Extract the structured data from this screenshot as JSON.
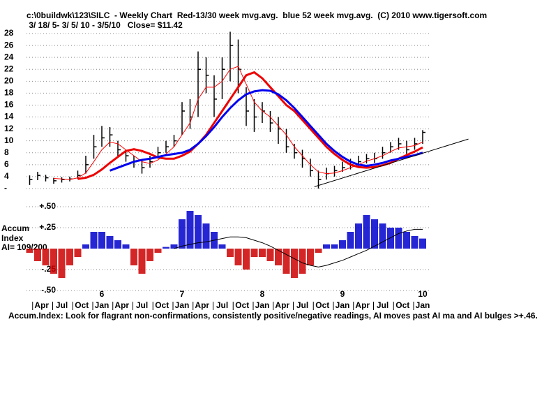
{
  "chart_data": [
    {
      "type": "ohlc",
      "title": "c:\\0buildwk\\123\\SILC  - Weekly Chart  Red-13/30 week mvg.avg.  blue 52 week mvg.avg.  (C) 2010 www.tigersoft.com",
      "subtitle": " 3/ 18/ 5- 3/ 5/ 10 - 3/5/10   Close= $11.42",
      "x": [
        5.1,
        5.2,
        5.3,
        5.4,
        5.5,
        5.6,
        5.7,
        5.8,
        5.9,
        6.0,
        6.1,
        6.2,
        6.3,
        6.4,
        6.5,
        6.6,
        6.7,
        6.8,
        6.9,
        7.0,
        7.1,
        7.2,
        7.3,
        7.4,
        7.5,
        7.6,
        7.7,
        7.8,
        7.9,
        8.0,
        8.1,
        8.2,
        8.3,
        8.4,
        8.5,
        8.6,
        8.7,
        8.8,
        8.9,
        9.0,
        9.1,
        9.2,
        9.3,
        9.4,
        9.5,
        9.6,
        9.7,
        9.8,
        9.9,
        10.0
      ],
      "high": [
        4.2,
        4.8,
        4.3,
        3.8,
        3.9,
        4.0,
        5.0,
        7.5,
        11,
        12.5,
        12.3,
        10,
        8.5,
        7.5,
        6.8,
        7.5,
        9,
        10,
        11,
        16.5,
        17,
        25,
        24,
        21,
        24,
        28.3,
        27,
        19,
        17,
        16.5,
        15,
        14,
        12,
        9.5,
        8.5,
        7,
        5,
        5.5,
        5.8,
        6.5,
        7,
        7.5,
        7.8,
        8,
        9,
        9.8,
        10.5,
        10,
        10.5,
        11.8
      ],
      "low": [
        2.6,
        3.4,
        3.2,
        2.8,
        3.0,
        3.2,
        3.6,
        4.5,
        7,
        9,
        9,
        7.5,
        6.5,
        5.5,
        4.5,
        5.5,
        7,
        8,
        9,
        11,
        12,
        14,
        18,
        14,
        17,
        20,
        18,
        12.5,
        11.5,
        13,
        11.5,
        9.5,
        8,
        7,
        5.5,
        4,
        2,
        3.5,
        4,
        4.8,
        5.2,
        5.8,
        6.2,
        6.3,
        7,
        8,
        8.5,
        7.8,
        8.5,
        9.5
      ],
      "close": [
        3.5,
        4.2,
        3.8,
        3.3,
        3.5,
        3.6,
        4.2,
        6,
        9,
        10.5,
        11,
        8.5,
        7.5,
        6.5,
        5.5,
        6.5,
        8,
        9,
        10,
        15,
        14,
        22,
        21,
        17,
        22,
        26,
        22,
        15,
        14,
        15,
        13,
        12,
        9,
        8,
        7,
        5,
        3.5,
        4.5,
        5,
        5.5,
        6,
        6.5,
        7,
        7,
        8,
        9,
        9.5,
        8.5,
        9.5,
        11.42
      ],
      "color": "#000000",
      "series": [
        {
          "color": "#ff0000",
          "width": 1,
          "values": [
            null,
            null,
            null,
            3.7,
            3.6,
            3.5,
            3.8,
            4.6,
            6.5,
            8.5,
            9.8,
            9.5,
            8.5,
            7.5,
            6.5,
            6.2,
            6.8,
            7.8,
            9,
            11,
            13,
            17,
            19,
            19,
            20,
            22,
            22.5,
            19.5,
            16.5,
            15,
            14,
            12.5,
            11,
            9,
            7.5,
            6,
            4.8,
            4.5,
            4.6,
            5,
            5.5,
            6,
            6.6,
            7,
            7.5,
            8.2,
            8.8,
            9,
            9.2,
            9.8
          ]
        },
        {
          "color": "#ee0000",
          "width": 3,
          "values": [
            null,
            null,
            null,
            null,
            null,
            null,
            3.6,
            3.8,
            4.3,
            5.2,
            6.3,
            7.3,
            8.3,
            8.6,
            8.3,
            7.8,
            7.2,
            7.0,
            7.0,
            7.5,
            8.2,
            9.5,
            11,
            13,
            15,
            17,
            19,
            21,
            21.5,
            20.5,
            19,
            17.5,
            16,
            15,
            13.5,
            12,
            10.5,
            9,
            7.8,
            6.8,
            6.0,
            5.6,
            5.5,
            5.6,
            5.9,
            6.3,
            7.0,
            7.6,
            8.2,
            8.9
          ]
        },
        {
          "color": "#0000ee",
          "width": 3,
          "values": [
            null,
            null,
            null,
            null,
            null,
            null,
            null,
            null,
            null,
            null,
            5.0,
            5.5,
            6.0,
            6.5,
            6.8,
            7.0,
            7.3,
            7.6,
            7.8,
            8.0,
            8.5,
            9.5,
            10.8,
            12.3,
            14,
            15.5,
            16.8,
            17.8,
            18.3,
            18.5,
            18.4,
            17.8,
            16.8,
            15.5,
            14,
            12.5,
            11,
            9.5,
            8.3,
            7.3,
            6.5,
            6.0,
            5.8,
            6.0,
            6.3,
            6.7,
            7.0,
            7.3,
            7.6,
            8.0
          ]
        }
      ],
      "trendline": {
        "x": [
          8.65,
          10.57
        ],
        "values": [
          2.3,
          10.3
        ],
        "color": "#000000"
      },
      "xlim": [
        5,
        10.6
      ],
      "ylim": [
        1,
        29
      ],
      "yticks": [
        {
          "value": 2,
          "label": "-"
        },
        4,
        6,
        8,
        10,
        12,
        14,
        16,
        18,
        20,
        22,
        24,
        26,
        28
      ],
      "grid": true
    },
    {
      "type": "bar",
      "labels": [
        "Accum",
        "Index",
        "AI= 109/200"
      ],
      "x": [
        5.1,
        5.2,
        5.3,
        5.4,
        5.5,
        5.6,
        5.7,
        5.8,
        5.9,
        6.0,
        6.1,
        6.2,
        6.3,
        6.4,
        6.5,
        6.6,
        6.7,
        6.8,
        6.9,
        7.0,
        7.1,
        7.2,
        7.3,
        7.4,
        7.5,
        7.6,
        7.7,
        7.8,
        7.9,
        8.0,
        8.1,
        8.2,
        8.3,
        8.4,
        8.5,
        8.6,
        8.7,
        8.8,
        8.9,
        9.0,
        9.1,
        9.2,
        9.3,
        9.4,
        9.5,
        9.6,
        9.7,
        9.8,
        9.9,
        10.0
      ],
      "values": [
        -0.05,
        -0.15,
        -0.2,
        -0.3,
        -0.35,
        -0.2,
        -0.1,
        0.05,
        0.2,
        0.2,
        0.15,
        0.1,
        0.05,
        -0.2,
        -0.3,
        -0.15,
        -0.05,
        0.02,
        0.05,
        0.35,
        0.45,
        0.4,
        0.3,
        0.2,
        0.05,
        -0.1,
        -0.2,
        -0.25,
        -0.1,
        -0.1,
        -0.15,
        -0.2,
        -0.3,
        -0.35,
        -0.3,
        -0.2,
        -0.05,
        0.05,
        0.05,
        0.1,
        0.2,
        0.3,
        0.4,
        0.35,
        0.3,
        0.25,
        0.25,
        0.2,
        0.15,
        0.12
      ],
      "positive_color": "#0000cc",
      "negative_color": "#cc0000",
      "series": [
        {
          "color": "#000000",
          "width": 1,
          "values": [
            null,
            null,
            null,
            null,
            null,
            null,
            null,
            null,
            null,
            null,
            null,
            null,
            null,
            null,
            null,
            null,
            null,
            null,
            0.0,
            0.03,
            0.05,
            0.07,
            0.08,
            0.1,
            0.12,
            0.14,
            0.14,
            0.13,
            0.1,
            0.07,
            0.03,
            -0.02,
            -0.07,
            -0.12,
            -0.17,
            -0.2,
            -0.22,
            -0.2,
            -0.17,
            -0.14,
            -0.1,
            -0.06,
            -0.02,
            0.03,
            0.08,
            0.13,
            0.18,
            0.21,
            0.23,
            0.23
          ]
        }
      ],
      "xlim": [
        5,
        10.6
      ],
      "ylim": [
        -0.6,
        0.6
      ],
      "yticks": [
        {
          "value": 0.5,
          "label": "+.50"
        },
        {
          "value": 0.25,
          "label": "+.25"
        },
        {
          "value": -0.25,
          "label": "-.25"
        },
        {
          "value": -0.5,
          "label": "-.50"
        }
      ],
      "xticks": [
        6,
        7,
        8,
        9,
        10
      ],
      "month_ticks": [
        {
          "value": 5.25,
          "label": "Apr"
        },
        {
          "value": 5.5,
          "label": "Jul"
        },
        {
          "value": 5.75,
          "label": "Oct"
        },
        {
          "value": 6.0,
          "label": "Jan"
        },
        {
          "value": 6.25,
          "label": "Apr"
        },
        {
          "value": 6.5,
          "label": "Jul"
        },
        {
          "value": 6.75,
          "label": "Oct"
        },
        {
          "value": 7.0,
          "label": "Jan"
        },
        {
          "value": 7.25,
          "label": "Apr"
        },
        {
          "value": 7.5,
          "label": "Jul"
        },
        {
          "value": 7.75,
          "label": "Oct"
        },
        {
          "value": 8.0,
          "label": "Jan"
        },
        {
          "value": 8.25,
          "label": "Apr"
        },
        {
          "value": 8.5,
          "label": "Jul"
        },
        {
          "value": 8.75,
          "label": "Oct"
        },
        {
          "value": 9.0,
          "label": "Jan"
        },
        {
          "value": 9.25,
          "label": "Apr"
        },
        {
          "value": 9.5,
          "label": "Jul"
        },
        {
          "value": 9.75,
          "label": "Oct"
        },
        {
          "value": 10.0,
          "label": "Jan"
        }
      ],
      "grid": true,
      "note": "Accum.Index: Look for flagrant non-confirmations, consistently positive/negative readings, AI moves past AI ma and AI bulges >+.46."
    }
  ]
}
